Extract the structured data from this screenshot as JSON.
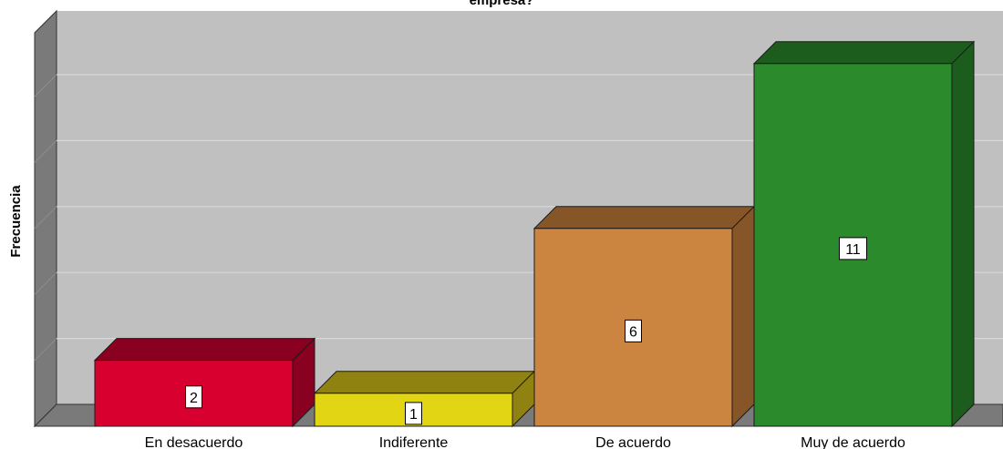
{
  "chart_data": {
    "type": "bar",
    "title": "empresa?",
    "xlabel": "",
    "ylabel": "Frecuencia",
    "categories": [
      "En desacuerdo",
      "Indiferente",
      "De acuerdo",
      "Muy de acuerdo"
    ],
    "values": [
      2,
      1,
      6,
      11
    ],
    "data_labels": [
      "2",
      "1",
      "6",
      "11"
    ],
    "ylim": [
      0,
      12.5
    ],
    "grid": true,
    "legend": "none",
    "style": "3d",
    "colors": {
      "bars": [
        "#d8002e",
        "#e2d513",
        "#cc8540",
        "#2b8a2b"
      ],
      "bar_tops": [
        "#8a0020",
        "#908210",
        "#875628",
        "#1c5c1c"
      ],
      "bar_sides": [
        "#8a0020",
        "#908210",
        "#875628",
        "#1c5c1c"
      ],
      "plot_background": "#c0c0c0",
      "wall": "#7a7a7a",
      "floor": "#7a7a7a",
      "gridline": "#d8d8d8"
    }
  }
}
